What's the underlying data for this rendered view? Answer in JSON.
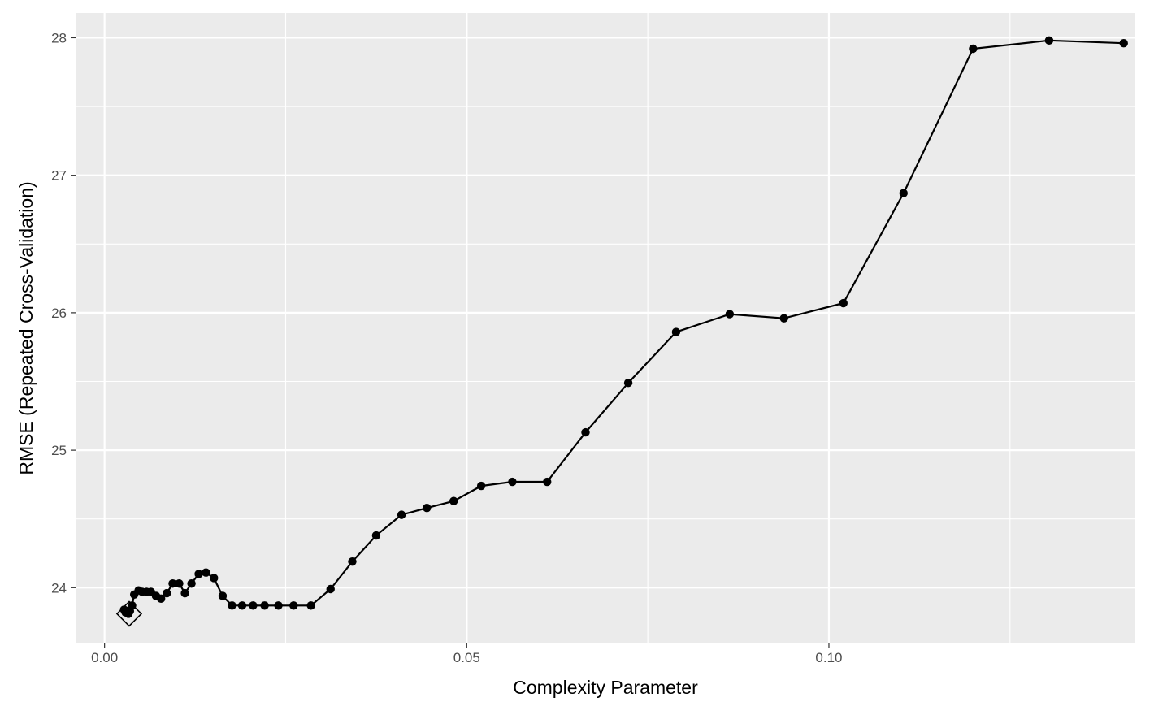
{
  "chart_data": {
    "type": "line",
    "xlabel": "Complexity Parameter",
    "ylabel": "RMSE (Repeated Cross-Validation)",
    "xlim": [
      -0.004,
      0.1423
    ],
    "ylim": [
      23.6,
      28.18
    ],
    "x_ticks": [
      0.0,
      0.05,
      0.1
    ],
    "x_tick_labels": [
      "0.00",
      "0.05",
      "0.10"
    ],
    "y_ticks": [
      24,
      25,
      26,
      27,
      28
    ],
    "y_tick_labels": [
      "24",
      "25",
      "26",
      "27",
      "28"
    ],
    "grid": true,
    "background": "#ebebeb",
    "line_color": "#000000",
    "series": [
      {
        "x": [
          0.0027,
          0.0029,
          0.0031,
          0.0033,
          0.0035,
          0.0038,
          0.0041,
          0.0047,
          0.0052,
          0.0058,
          0.0064,
          0.0071,
          0.0078,
          0.0086,
          0.0094,
          0.0103,
          0.0111,
          0.012,
          0.013,
          0.014,
          0.0151,
          0.0163,
          0.0176,
          0.019,
          0.0205,
          0.0221,
          0.024,
          0.0261,
          0.0285,
          0.0312,
          0.0342,
          0.0375,
          0.041,
          0.0445,
          0.0482,
          0.052,
          0.0563,
          0.0611,
          0.0664,
          0.0723,
          0.0789,
          0.0863,
          0.0938,
          0.102,
          0.1103,
          0.1199,
          0.1304,
          0.1407
        ],
        "y": [
          23.84,
          23.82,
          23.83,
          23.81,
          23.83,
          23.87,
          23.95,
          23.98,
          23.97,
          23.97,
          23.97,
          23.94,
          23.92,
          23.96,
          24.03,
          24.03,
          23.96,
          24.03,
          24.1,
          24.11,
          24.07,
          23.94,
          23.87,
          23.87,
          23.87,
          23.87,
          23.87,
          23.87,
          23.87,
          23.99,
          24.19,
          24.38,
          24.53,
          24.58,
          24.63,
          24.74,
          24.77,
          24.77,
          25.13,
          25.49,
          25.86,
          25.99,
          25.96,
          26.07,
          26.87,
          27.92,
          27.98,
          27.96
        ]
      }
    ],
    "best_point": {
      "x": 0.0034,
      "y": 23.81
    }
  }
}
